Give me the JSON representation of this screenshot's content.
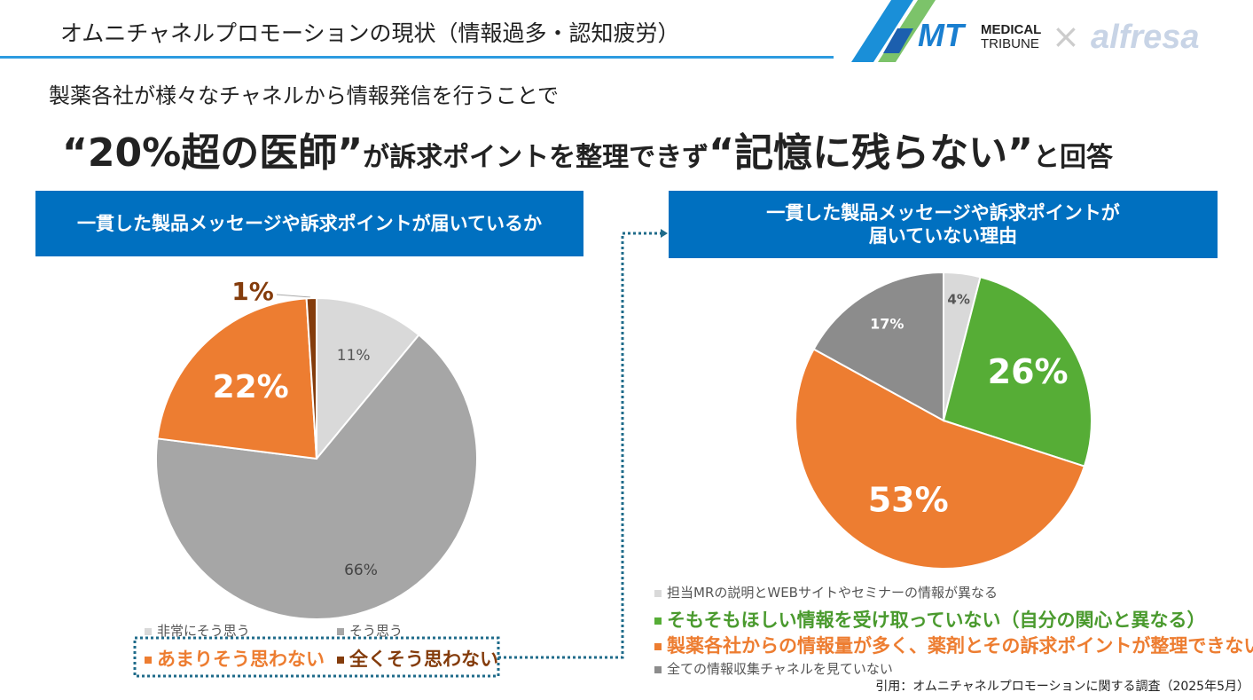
{
  "title": "オムニチャネルプロモーションの現状（情報過多・認知疲労）",
  "logo": {
    "brand1": "MT",
    "brand1_text": [
      "MEDICAL",
      "TRIBUNE"
    ],
    "sep": "×",
    "brand2": "alfresa"
  },
  "subtitle": "製薬各社が様々なチャネルから情報発信を行うことで",
  "headline": {
    "q1": "“20%超の医師”",
    "mid": "が訴求ポイントを整理できず",
    "q2": "“記憶に残らない”",
    "end": "と回答"
  },
  "chart_data": [
    {
      "type": "pie",
      "title": "一貫した製品メッセージや訴求ポイントが届いているか",
      "labels": [
        "非常にそう思う",
        "そう思う",
        "あまりそう思わない",
        "全くそう思わない"
      ],
      "values": [
        11,
        66,
        22,
        1
      ],
      "value_labels": [
        "11%",
        "66%",
        "22%",
        "1%"
      ],
      "colors": [
        "#d9d9d9",
        "#a6a6a6",
        "#ed7d31",
        "#843c0c"
      ],
      "legend": "bottom"
    },
    {
      "type": "pie",
      "title": "一貫した製品メッセージや訴求ポイントが 届いていない理由",
      "title_lines": [
        "一貫した製品メッセージや訴求ポイントが",
        "届いていない理由"
      ],
      "labels": [
        "担当MRの説明とWEBサイトやセミナーの情報が異なる",
        "そもそもほしい情報を受け取っていない（自分の関心と異なる）",
        "製薬各社からの情報量が多く、薬剤とその訴求ポイントが整理できない",
        "全ての情報収集チャネルを見ていない"
      ],
      "values": [
        4,
        26,
        53,
        17
      ],
      "value_labels": [
        "4%",
        "26%",
        "53%",
        "17%"
      ],
      "colors": [
        "#d9d9d9",
        "#56ad36",
        "#ed7d31",
        "#8c8c8c"
      ],
      "legend": "bottom"
    }
  ],
  "source": "引用：オムニチャネルプロモーションに関する調査（2025年5月）"
}
